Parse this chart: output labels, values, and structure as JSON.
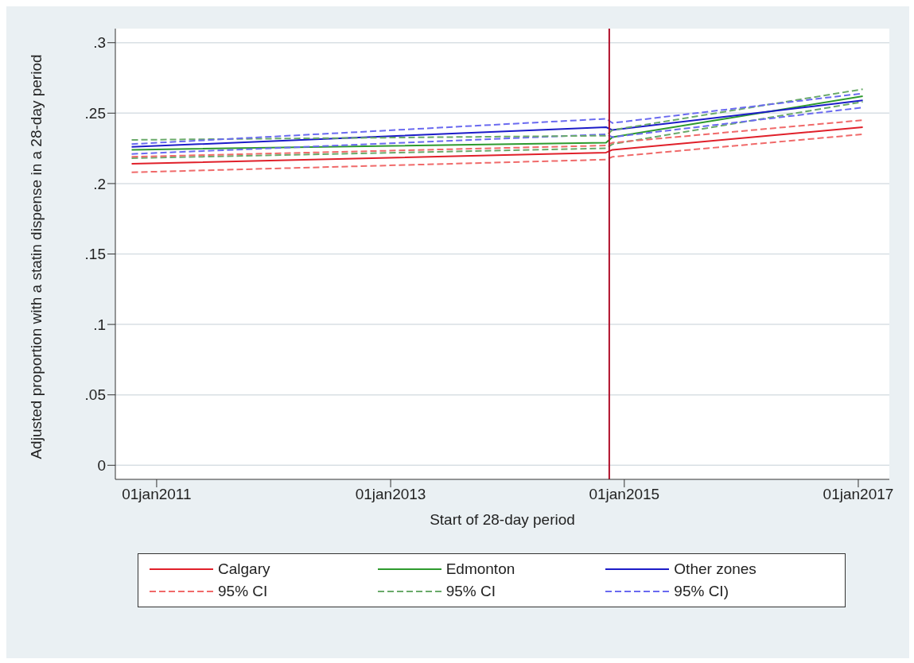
{
  "chart_data": {
    "type": "line",
    "xlabel": "Start of 28-day period",
    "ylabel": "Adjusted proportion with a statin dispense in a 28-day period",
    "x": [
      "2010-10-15",
      "2014-11-05",
      "2014-11-25",
      "2017-01-15"
    ],
    "series": [
      {
        "name": "Calgary",
        "color": "#e0202a",
        "line_style": "solid",
        "values": [
          0.214,
          0.222,
          0.224,
          0.24
        ]
      },
      {
        "name": "Edmonton",
        "color": "#2e9a2e",
        "line_style": "solid",
        "values": [
          0.224,
          0.229,
          0.233,
          0.262
        ]
      },
      {
        "name": "Other zones",
        "color": "#1c1cc8",
        "line_style": "solid",
        "values": [
          0.226,
          0.24,
          0.238,
          0.259
        ]
      },
      {
        "name": "95% CI",
        "color": "#f06a6a",
        "line_style": "dashed",
        "values": [
          0.208,
          0.217,
          0.219,
          0.235
        ]
      },
      {
        "name": "95% CI",
        "color": "#6aaa6a",
        "line_style": "dashed",
        "values": [
          0.218,
          0.225,
          0.228,
          0.258
        ]
      },
      {
        "name": "95% CI)",
        "color": "#6a6af0",
        "line_style": "dashed",
        "values": [
          0.221,
          0.235,
          0.233,
          0.254
        ]
      },
      {
        "color": "#f06a6a",
        "line_style": "dashed",
        "values": [
          0.219,
          0.227,
          0.229,
          0.245
        ]
      },
      {
        "color": "#6aaa6a",
        "line_style": "dashed",
        "values": [
          0.231,
          0.234,
          0.238,
          0.267
        ]
      },
      {
        "color": "#6a6af0",
        "line_style": "dashed",
        "values": [
          0.228,
          0.246,
          0.243,
          0.264
        ]
      }
    ],
    "xlim": [
      "2010-08-25",
      "2017-04-08"
    ],
    "xticks": [
      {
        "value": "2011-01-01",
        "label": "01jan2011"
      },
      {
        "value": "2013-01-01",
        "label": "01jan2013"
      },
      {
        "value": "2015-01-01",
        "label": "01jan2015"
      },
      {
        "value": "2017-01-01",
        "label": "01jan2017"
      }
    ],
    "ylim": [
      -0.01,
      0.31
    ],
    "yticks": [
      0,
      {
        "value": 0.05,
        "label": ".05"
      },
      {
        "value": 0.1,
        "label": ".1"
      },
      {
        "value": 0.15,
        "label": ".15"
      },
      {
        "value": 0.2,
        "label": ".2"
      },
      {
        "value": 0.25,
        "label": ".25"
      },
      {
        "value": 0.3,
        "label": ".3"
      }
    ],
    "ref_lines": [
      {
        "axis": "x",
        "value": "2014-11-15",
        "color": "#b0102a"
      }
    ],
    "grid": "y",
    "legend": "bottom",
    "marker": "none"
  }
}
